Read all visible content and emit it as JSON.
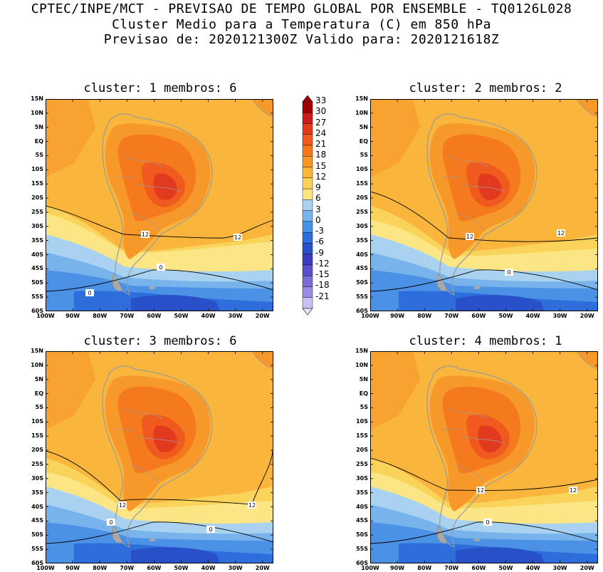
{
  "header": {
    "line1": "CPTEC/INPE/MCT - PREVISAO DE TEMPO GLOBAL POR ENSEMBLE - TQ0126L028",
    "line2": "Cluster Medio para a Temperatura (C) em 850 hPa",
    "line3": "Previsao de: 2020121300Z   Valido para: 2020121618Z"
  },
  "panels": [
    {
      "title": "cluster: 1   membros: 6",
      "contour_labels": [
        "12",
        "12",
        "0",
        "0"
      ]
    },
    {
      "title": "cluster: 2   membros: 2",
      "contour_labels": [
        "12",
        "12",
        "0"
      ]
    },
    {
      "title": "cluster: 3   membros: 6",
      "contour_labels": [
        "12",
        "12",
        "0",
        "0"
      ]
    },
    {
      "title": "cluster: 4   membros: 1",
      "contour_labels": [
        "12",
        "12",
        "0"
      ]
    }
  ],
  "lat_ticks": [
    "15N",
    "10N",
    "5N",
    "EQ",
    "5S",
    "10S",
    "15S",
    "20S",
    "25S",
    "30S",
    "35S",
    "40S",
    "45S",
    "50S",
    "55S",
    "60S"
  ],
  "lon_ticks": [
    "100W",
    "90W",
    "80W",
    "70W",
    "60W",
    "50W",
    "40W",
    "30W",
    "20W"
  ],
  "colorbar": {
    "labels": [
      "33",
      "30",
      "27",
      "24",
      "21",
      "18",
      "15",
      "12",
      "9",
      "6",
      "3",
      "0",
      "-3",
      "-6",
      "-9",
      "-12",
      "-15",
      "-18",
      "-21"
    ],
    "colors": [
      "#a00000",
      "#c81e1e",
      "#e23a1e",
      "#f05a1e",
      "#f57a1e",
      "#f7982a",
      "#f9b53c",
      "#fad35a",
      "#fbe584",
      "#a8d2f0",
      "#78b4eb",
      "#4b91e6",
      "#2d6edc",
      "#2850c8",
      "#3c3cbe",
      "#5a50c8",
      "#7a6ed2",
      "#9a8ee0",
      "#c8c0f0"
    ]
  },
  "colors": {
    "land_border": "#9a9a9a",
    "contour": "#000000"
  }
}
